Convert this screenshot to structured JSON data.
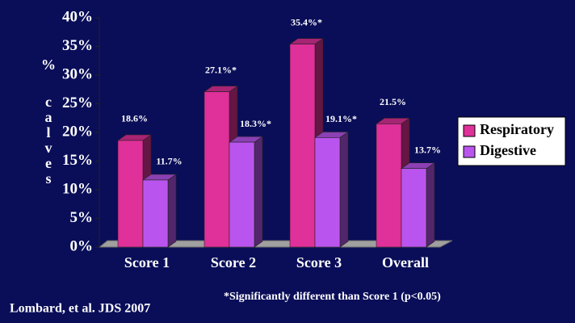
{
  "chart_data": {
    "type": "bar",
    "ylabel": "% calves",
    "categories": [
      "Score 1",
      "Score 2",
      "Score 3",
      "Overall"
    ],
    "series": [
      {
        "name": "Respiratory",
        "color": "#e0309a",
        "values": [
          18.6,
          27.1,
          35.4,
          21.5
        ],
        "value_labels": [
          "18.6%",
          "27.1%*",
          "35.4%*",
          "21.5%"
        ]
      },
      {
        "name": "Digestive",
        "color": "#b955ee",
        "values": [
          11.7,
          18.3,
          19.1,
          13.7
        ],
        "value_labels": [
          "11.7%",
          "18.3%*",
          "19.1%*",
          "13.7%"
        ]
      }
    ],
    "ylim": [
      0,
      40
    ],
    "yticks": [
      {
        "value": 0,
        "label": "0%"
      },
      {
        "value": 5,
        "label": "5%"
      },
      {
        "value": 10,
        "label": "10%"
      },
      {
        "value": 15,
        "label": "15%"
      },
      {
        "value": 20,
        "label": "20%"
      },
      {
        "value": 25,
        "label": "25%"
      },
      {
        "value": 30,
        "label": "30%"
      },
      {
        "value": 35,
        "label": "35%"
      },
      {
        "value": 40,
        "label": "40%"
      }
    ],
    "legend": "right",
    "annotations": [
      "*Significantly different than Score 1 (p<0.05)",
      "Lombard, et al. JDS 2007"
    ]
  }
}
